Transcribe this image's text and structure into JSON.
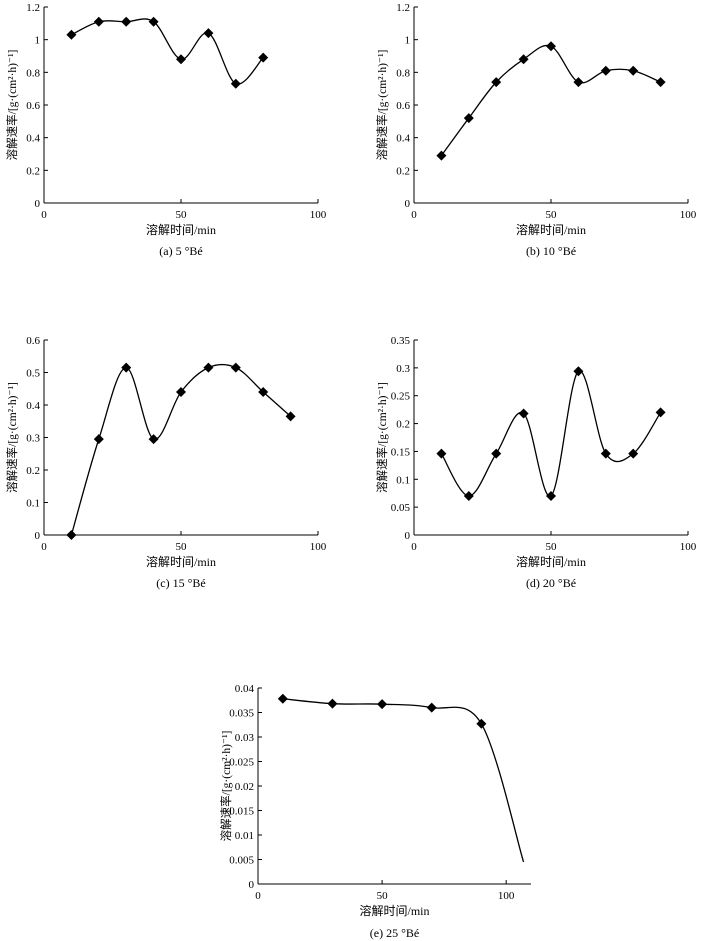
{
  "chart_data": [
    {
      "type": "line",
      "caption": "(a) 5 °Bé",
      "xlabel": "溶解时间/min",
      "ylabel": "溶解速率/[g·(cm²·h)⁻¹]",
      "xlim": [
        0,
        100
      ],
      "ylim": [
        0,
        1.2
      ],
      "xticks": [
        0,
        50,
        100
      ],
      "yticks": [
        0,
        0.2,
        0.4,
        0.6,
        0.8,
        1,
        1.2
      ],
      "ytick_labels": [
        "0",
        "0.2",
        "0.4",
        "0.6",
        "0.8",
        "1",
        "1.2"
      ],
      "xtick_labels": [
        "0",
        "50",
        "100"
      ],
      "grid": false,
      "x": [
        10,
        20,
        30,
        40,
        50,
        60,
        70,
        80
      ],
      "y": [
        1.03,
        1.11,
        1.11,
        1.11,
        0.88,
        1.04,
        0.73,
        0.89
      ]
    },
    {
      "type": "line",
      "caption": "(b) 10 °Bé",
      "xlabel": "溶解时间/min",
      "ylabel": "溶解速率/[g·(cm²·h)⁻¹]",
      "xlim": [
        0,
        100
      ],
      "ylim": [
        0,
        1.2
      ],
      "xticks": [
        0,
        50,
        100
      ],
      "yticks": [
        0,
        0.2,
        0.4,
        0.6,
        0.8,
        1,
        1.2
      ],
      "ytick_labels": [
        "0",
        "0.2",
        "0.4",
        "0.6",
        "0.8",
        "1",
        "1.2"
      ],
      "xtick_labels": [
        "0",
        "50",
        "100"
      ],
      "grid": false,
      "x": [
        10,
        20,
        30,
        40,
        50,
        60,
        70,
        80,
        90
      ],
      "y": [
        0.29,
        0.52,
        0.74,
        0.88,
        0.96,
        0.74,
        0.81,
        0.81,
        0.74
      ]
    },
    {
      "type": "line",
      "caption": "(c) 15 °Bé",
      "xlabel": "溶解时间/min",
      "ylabel": "溶解速率/[g·(cm²·h)⁻¹]",
      "xlim": [
        0,
        100
      ],
      "ylim": [
        0,
        0.6
      ],
      "xticks": [
        0,
        50,
        100
      ],
      "yticks": [
        0,
        0.1,
        0.2,
        0.3,
        0.4,
        0.5,
        0.6
      ],
      "ytick_labels": [
        "0",
        "0.1",
        "0.2",
        "0.3",
        "0.4",
        "0.5",
        "0.6"
      ],
      "xtick_labels": [
        "0",
        "50",
        "100"
      ],
      "grid": false,
      "x": [
        10,
        20,
        30,
        40,
        50,
        60,
        70,
        80,
        90
      ],
      "y": [
        0,
        0.295,
        0.515,
        0.295,
        0.44,
        0.515,
        0.515,
        0.44,
        0.365
      ]
    },
    {
      "type": "line",
      "caption": "(d) 20 °Bé",
      "xlabel": "溶解时间/min",
      "ylabel": "溶解速率/[g·(cm²·h)⁻¹]",
      "xlim": [
        0,
        100
      ],
      "ylim": [
        0,
        0.35
      ],
      "xticks": [
        0,
        50,
        100
      ],
      "yticks": [
        0,
        0.05,
        0.1,
        0.15,
        0.2,
        0.25,
        0.3,
        0.35
      ],
      "ytick_labels": [
        "0",
        "0.05",
        "0.1",
        "0.15",
        "0.2",
        "0.25",
        "0.3",
        "0.35"
      ],
      "xtick_labels": [
        "0",
        "50",
        "100"
      ],
      "grid": false,
      "x": [
        10,
        20,
        30,
        40,
        50,
        60,
        70,
        80,
        90
      ],
      "y": [
        0.146,
        0.07,
        0.146,
        0.218,
        0.07,
        0.294,
        0.146,
        0.146,
        0.22
      ]
    },
    {
      "type": "line",
      "caption": "(e) 25 °Bé",
      "xlabel": "溶解时间/min",
      "ylabel": "溶解速率/[g·(cm²·h)⁻¹]",
      "xlim": [
        0,
        110
      ],
      "ylim": [
        0,
        0.04
      ],
      "xticks": [
        0,
        50,
        100
      ],
      "yticks": [
        0,
        0.005,
        0.01,
        0.015,
        0.02,
        0.025,
        0.03,
        0.035,
        0.04
      ],
      "ytick_labels": [
        "0",
        "0.005",
        "0.01",
        "0.015",
        "0.02",
        "0.025",
        "0.03",
        "0.035",
        "0.04"
      ],
      "xtick_labels": [
        "0",
        "50",
        "100"
      ],
      "grid": false,
      "x": [
        10,
        30,
        50,
        70,
        90
      ],
      "y": [
        0.0378,
        0.0368,
        0.0367,
        0.036,
        0.0327
      ],
      "curve_extension": {
        "x": 107,
        "y": 0.0045
      }
    }
  ]
}
